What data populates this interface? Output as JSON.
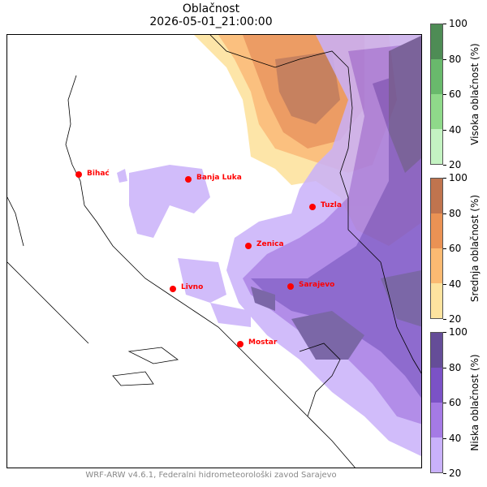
{
  "title": "Oblačnost",
  "datetime": "2026-05-01_21:00:00",
  "cities": [
    {
      "name": "Bihać"
    },
    {
      "name": "Banja Luka"
    },
    {
      "name": "Tuzla"
    },
    {
      "name": "Zenica"
    },
    {
      "name": "Livno"
    },
    {
      "name": "Sarajevo"
    },
    {
      "name": "Mostar"
    }
  ],
  "colorbars": [
    {
      "label": "Visoka oblačnost (%)",
      "ticks": [
        "100",
        "80",
        "60",
        "40",
        "20"
      ],
      "colors": [
        "#4e8c55",
        "#69b96c",
        "#8fd98a",
        "#c4f3c2"
      ]
    },
    {
      "label": "Srednja oblačnost (%)",
      "ticks": [
        "100",
        "80",
        "60",
        "40",
        "20"
      ],
      "colors": [
        "#c0744e",
        "#ea9254",
        "#fbba72",
        "#fde39f"
      ]
    },
    {
      "label": "Niska oblačnost (%)",
      "ticks": [
        "100",
        "80",
        "60",
        "40",
        "20"
      ],
      "colors": [
        "#654d98",
        "#7b52c6",
        "#a57ae5",
        "#c9b1fa"
      ]
    }
  ],
  "footer": "WRF-ARW v4.6.1, Federalni hidrometeorološki zavod Sarajevo"
}
